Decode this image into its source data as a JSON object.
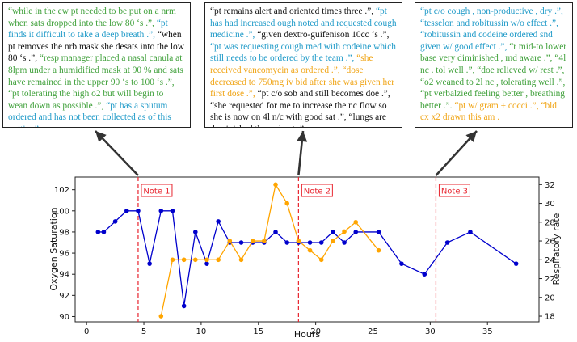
{
  "colors": {
    "oxygen": "#0000cc",
    "resp": "#ffa500",
    "note_line": "#e8242e",
    "text_green": "#3fa03a",
    "text_blue": "#1f9ac8",
    "text_orange": "#f0a414",
    "text_black": "#111111"
  },
  "notes": [
    {
      "label": "Note 1",
      "segments": [
        {
          "text": "“while in the ew pt needed to be put on a nrm when sats dropped into the low 80 ‘s .”, ",
          "color": "green"
        },
        {
          "text": "“pt finds it difficult to take a deep breath .”, ",
          "color": "blue"
        },
        {
          "text": "“when pt removes the nrb mask she desats into the low 80 ‘s .”, ",
          "color": "black"
        },
        {
          "text": "“resp manager placed a nasal canula at 8lpm under a humidified mask at 90 % and sats have remained in the upper 90 ‘s to 100 ‘s .”, “pt tolerating the high o2 but will begin to wean down as possible .”, ",
          "color": "green"
        },
        {
          "text": "“pt has a sputum ordered and has not been collected as of this writing”.",
          "color": "blue"
        }
      ]
    },
    {
      "label": "Note 2",
      "segments": [
        {
          "text": "“pt remains alert and oriented times three .”, ",
          "color": "black"
        },
        {
          "text": "“pt has had increased ough noted and requested cough medicine .”, ",
          "color": "blue"
        },
        {
          "text": "“given dextro-guifenison 10cc ‘s .”, ",
          "color": "black"
        },
        {
          "text": "“pt was requesting cough med with codeine which still needs to be ordered by the team .”, ",
          "color": "blue"
        },
        {
          "text": "“she received vancomycin as ordered .”, “dose decreased to 750mg iv bid after she was given her first dose .”, ",
          "color": "orange"
        },
        {
          "text": "“pt c/o sob and still becomes doe .”, “she requested for me to increase the nc flow so she is now on 4l n/c with good sat .”, “lungs are deminished throughout .”",
          "color": "black"
        }
      ]
    },
    {
      "label": "Note 3",
      "segments": [
        {
          "text": "“pt c/o cough , non-productive , dry .”, “tesselon and robitussin w/o effect .”, “robitussin and codeine ordered snd given w/ good effect .”, ",
          "color": "blue"
        },
        {
          "text": "“r mid-to lower base very diminished , md aware .”, “4l nc . tol well .”, “doe relieved w/ rest .”, “o2 weaned to 2l nc , tolerating well .”, “pt verbalzied feeling better , breathing better .”. ",
          "color": "green"
        },
        {
          "text": "“pt w/ gram + cocci .”, “bld cx x2 drawn this am .",
          "color": "orange"
        }
      ]
    }
  ],
  "chart_data": {
    "type": "line",
    "xlabel": "Hours",
    "ylabel": "Oxygen Saturation",
    "y2label": "Respiratory rate",
    "xlim": [
      -1,
      39.5
    ],
    "ylim": [
      89.5,
      103.2
    ],
    "y2lim": [
      17.4,
      32.8
    ],
    "xticks": [
      0,
      5,
      10,
      15,
      20,
      25,
      30,
      35
    ],
    "yticks": [
      90,
      92,
      94,
      96,
      98,
      100,
      102
    ],
    "y2ticks": [
      18,
      20,
      22,
      24,
      26,
      28,
      30,
      32
    ],
    "note_positions": [
      4.5,
      18.5,
      30.5
    ],
    "series": [
      {
        "name": "",
        "axis": "left",
        "color": "#0000cc",
        "x": [
          1,
          1.5,
          2.5,
          3.5,
          4.5,
          5.5,
          6.5,
          7.5,
          8.5,
          9.5,
          10.5,
          11.5,
          12.5,
          13.5,
          14.5,
          15.5,
          16.5,
          17.5,
          18.5,
          19.5,
          20.5,
          21.5,
          22.5,
          23.5,
          25.5,
          27.5,
          29.5,
          31.5,
          33.5,
          37.5
        ],
        "values": [
          98,
          98,
          99,
          100,
          100,
          95,
          100,
          100,
          91,
          98,
          95,
          99,
          97,
          97,
          97,
          97,
          98,
          97,
          97,
          97,
          97,
          98,
          97,
          98,
          98,
          95,
          94,
          97,
          98,
          95
        ]
      },
      {
        "name": "",
        "axis": "right",
        "color": "#ffa500",
        "x": [
          6.5,
          7.5,
          8.5,
          9.5,
          10.5,
          11.5,
          12.5,
          13.5,
          14.5,
          15.5,
          16.5,
          17.5,
          18.5,
          19.5,
          20.5,
          21.5,
          22.5,
          23.5,
          25.5
        ],
        "values": [
          18,
          24,
          24,
          24,
          24,
          24,
          26,
          24,
          26,
          26,
          32,
          30,
          26,
          25,
          24,
          26,
          27,
          28,
          25
        ]
      }
    ]
  }
}
